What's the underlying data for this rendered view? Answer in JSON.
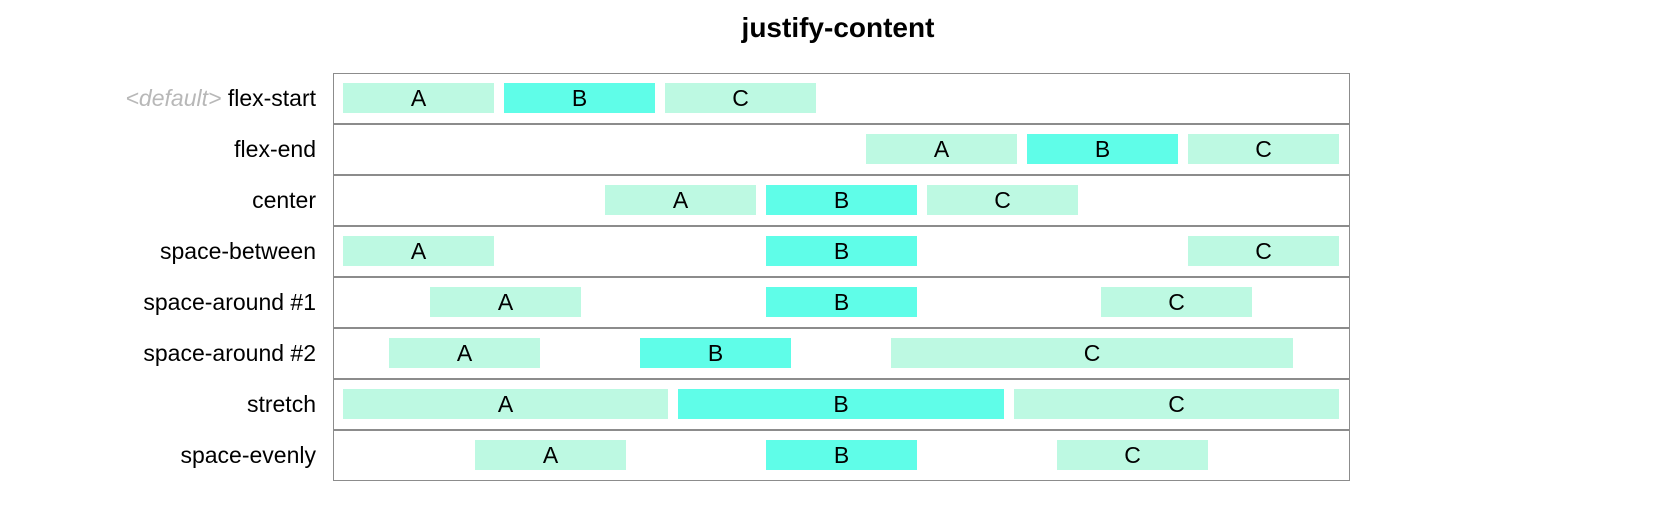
{
  "title": "justify-content",
  "colors": {
    "item_light": "#bdf9e2",
    "item_accent": "#5ffde8",
    "border": "#8c8c8c",
    "default_tag": "#b8b8b8"
  },
  "rows": [
    {
      "default_tag": "<default>",
      "label": "flex-start",
      "items": [
        {
          "label": "A"
        },
        {
          "label": "B"
        },
        {
          "label": "C"
        }
      ]
    },
    {
      "label": "flex-end",
      "items": [
        {
          "label": "A"
        },
        {
          "label": "B"
        },
        {
          "label": "C"
        }
      ]
    },
    {
      "label": "center",
      "items": [
        {
          "label": "A"
        },
        {
          "label": "B"
        },
        {
          "label": "C"
        }
      ]
    },
    {
      "label": "space-between",
      "items": [
        {
          "label": "A"
        },
        {
          "label": "B"
        },
        {
          "label": "C"
        }
      ]
    },
    {
      "label": "space-around #1",
      "items": [
        {
          "label": "A"
        },
        {
          "label": "B"
        },
        {
          "label": "C"
        }
      ]
    },
    {
      "label": "space-around #2",
      "items": [
        {
          "label": "A"
        },
        {
          "label": "B"
        },
        {
          "label": "C"
        }
      ]
    },
    {
      "label": "stretch",
      "items": [
        {
          "label": "A"
        },
        {
          "label": "B"
        },
        {
          "label": "C"
        }
      ]
    },
    {
      "label": "space-evenly",
      "items": [
        {
          "label": "A"
        },
        {
          "label": "B"
        },
        {
          "label": "C"
        }
      ]
    }
  ]
}
